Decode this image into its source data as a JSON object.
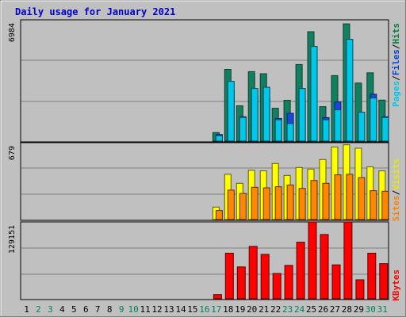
{
  "title": "Daily usage for January 2021",
  "chart_data": [
    {
      "type": "bar",
      "panel": "hits-files-pages",
      "ymax_label": "6984",
      "ylim": [
        0,
        6984
      ],
      "legend": [
        {
          "name": "Pages",
          "color": "#00c8e8"
        },
        {
          "name": "Files",
          "color": "#0040e0"
        },
        {
          "name": "Hits",
          "color": "#008040"
        }
      ],
      "legend_sep": "/",
      "categories": [
        "1",
        "2",
        "3",
        "4",
        "5",
        "6",
        "7",
        "8",
        "9",
        "10",
        "11",
        "12",
        "13",
        "14",
        "15",
        "16",
        "17",
        "18",
        "19",
        "20",
        "21",
        "22",
        "23",
        "24",
        "25",
        "26",
        "27",
        "28",
        "29",
        "30",
        "31"
      ],
      "series": [
        {
          "name": "Hits",
          "color": "#128060",
          "values": [
            0,
            0,
            0,
            0,
            0,
            0,
            0,
            0,
            0,
            0,
            0,
            0,
            0,
            0,
            0,
            0,
            490,
            4130,
            2030,
            4000,
            3880,
            1890,
            2350,
            4410,
            6300,
            1980,
            3770,
            6750,
            3340,
            3930,
            2360
          ]
        },
        {
          "name": "Files",
          "color": "#1848d8",
          "values": [
            0,
            0,
            0,
            0,
            0,
            0,
            0,
            0,
            0,
            0,
            0,
            0,
            0,
            0,
            0,
            0,
            380,
            2900,
            1400,
            2600,
            2450,
            1300,
            1600,
            2400,
            4100,
            1350,
            2250,
            2450,
            1500,
            2700,
            1400
          ]
        },
        {
          "name": "Pages",
          "color": "#00c8e8",
          "values": [
            0,
            0,
            0,
            0,
            0,
            0,
            0,
            0,
            0,
            0,
            0,
            0,
            0,
            0,
            0,
            0,
            310,
            3440,
            1360,
            3030,
            3100,
            1230,
            1010,
            3030,
            5450,
            1230,
            1800,
            5860,
            1660,
            2480,
            1360
          ]
        }
      ]
    },
    {
      "type": "bar",
      "panel": "visits-sites",
      "ymax_label": "679",
      "ylim": [
        0,
        679
      ],
      "legend": [
        {
          "name": "Sites",
          "color": "#ff8000"
        },
        {
          "name": "Visits",
          "color": "#e8e800"
        }
      ],
      "legend_sep": "/",
      "categories": [
        "1",
        "2",
        "3",
        "4",
        "5",
        "6",
        "7",
        "8",
        "9",
        "10",
        "11",
        "12",
        "13",
        "14",
        "15",
        "16",
        "17",
        "18",
        "19",
        "20",
        "21",
        "22",
        "23",
        "24",
        "25",
        "26",
        "27",
        "28",
        "29",
        "30",
        "31"
      ],
      "series": [
        {
          "name": "Visits",
          "color": "#ffff00",
          "values": [
            0,
            0,
            0,
            0,
            0,
            0,
            0,
            0,
            0,
            0,
            0,
            0,
            0,
            0,
            0,
            0,
            110,
            400,
            320,
            435,
            430,
            495,
            390,
            460,
            445,
            530,
            640,
            660,
            630,
            465,
            430
          ]
        },
        {
          "name": "Sites",
          "color": "#ff8800",
          "values": [
            0,
            0,
            0,
            0,
            0,
            0,
            0,
            0,
            0,
            0,
            0,
            0,
            0,
            0,
            0,
            0,
            80,
            260,
            230,
            285,
            280,
            290,
            305,
            275,
            345,
            320,
            395,
            400,
            370,
            255,
            250
          ]
        }
      ]
    },
    {
      "type": "bar",
      "panel": "kbytes",
      "ymax_label": "129151",
      "ylim": [
        0,
        129151
      ],
      "legend": [
        {
          "name": "KBytes",
          "color": "#ff0000"
        }
      ],
      "categories": [
        "1",
        "2",
        "3",
        "4",
        "5",
        "6",
        "7",
        "8",
        "9",
        "10",
        "11",
        "12",
        "13",
        "14",
        "15",
        "16",
        "17",
        "18",
        "19",
        "20",
        "21",
        "22",
        "23",
        "24",
        "25",
        "26",
        "27",
        "28",
        "29",
        "30",
        "31"
      ],
      "series": [
        {
          "name": "KBytes",
          "color": "#ff0000",
          "values": [
            0,
            0,
            0,
            0,
            0,
            0,
            0,
            0,
            0,
            0,
            0,
            0,
            0,
            0,
            0,
            0,
            7000,
            76500,
            53500,
            88000,
            74500,
            42500,
            56000,
            95000,
            129000,
            108000,
            57000,
            129000,
            32000,
            76500,
            59000
          ]
        }
      ]
    }
  ],
  "weekend_days": [
    "2",
    "3",
    "9",
    "10",
    "16",
    "17",
    "23",
    "24",
    "30",
    "31"
  ],
  "weekend_color": "#00805a",
  "weekday_color": "#000000"
}
